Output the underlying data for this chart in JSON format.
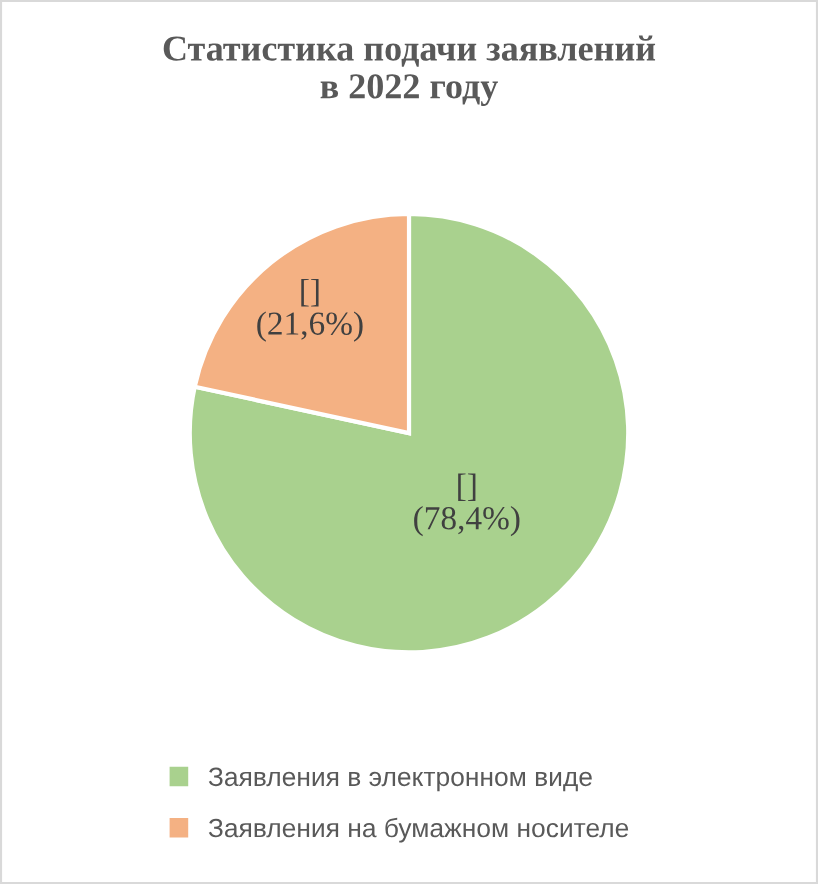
{
  "chart_data": {
    "type": "pie",
    "title": "Статистика подачи заявлений\nв 2022 году",
    "categories": [
      "Заявления в электронном виде",
      "Заявления на бумажном носителе"
    ],
    "values": [
      78.4,
      21.6
    ],
    "colors": [
      "#a9d18e",
      "#f4b183"
    ],
    "value_labels": [
      "[]\n(78,4%)",
      "[]\n(21,6%)"
    ],
    "legend": "bottom"
  }
}
